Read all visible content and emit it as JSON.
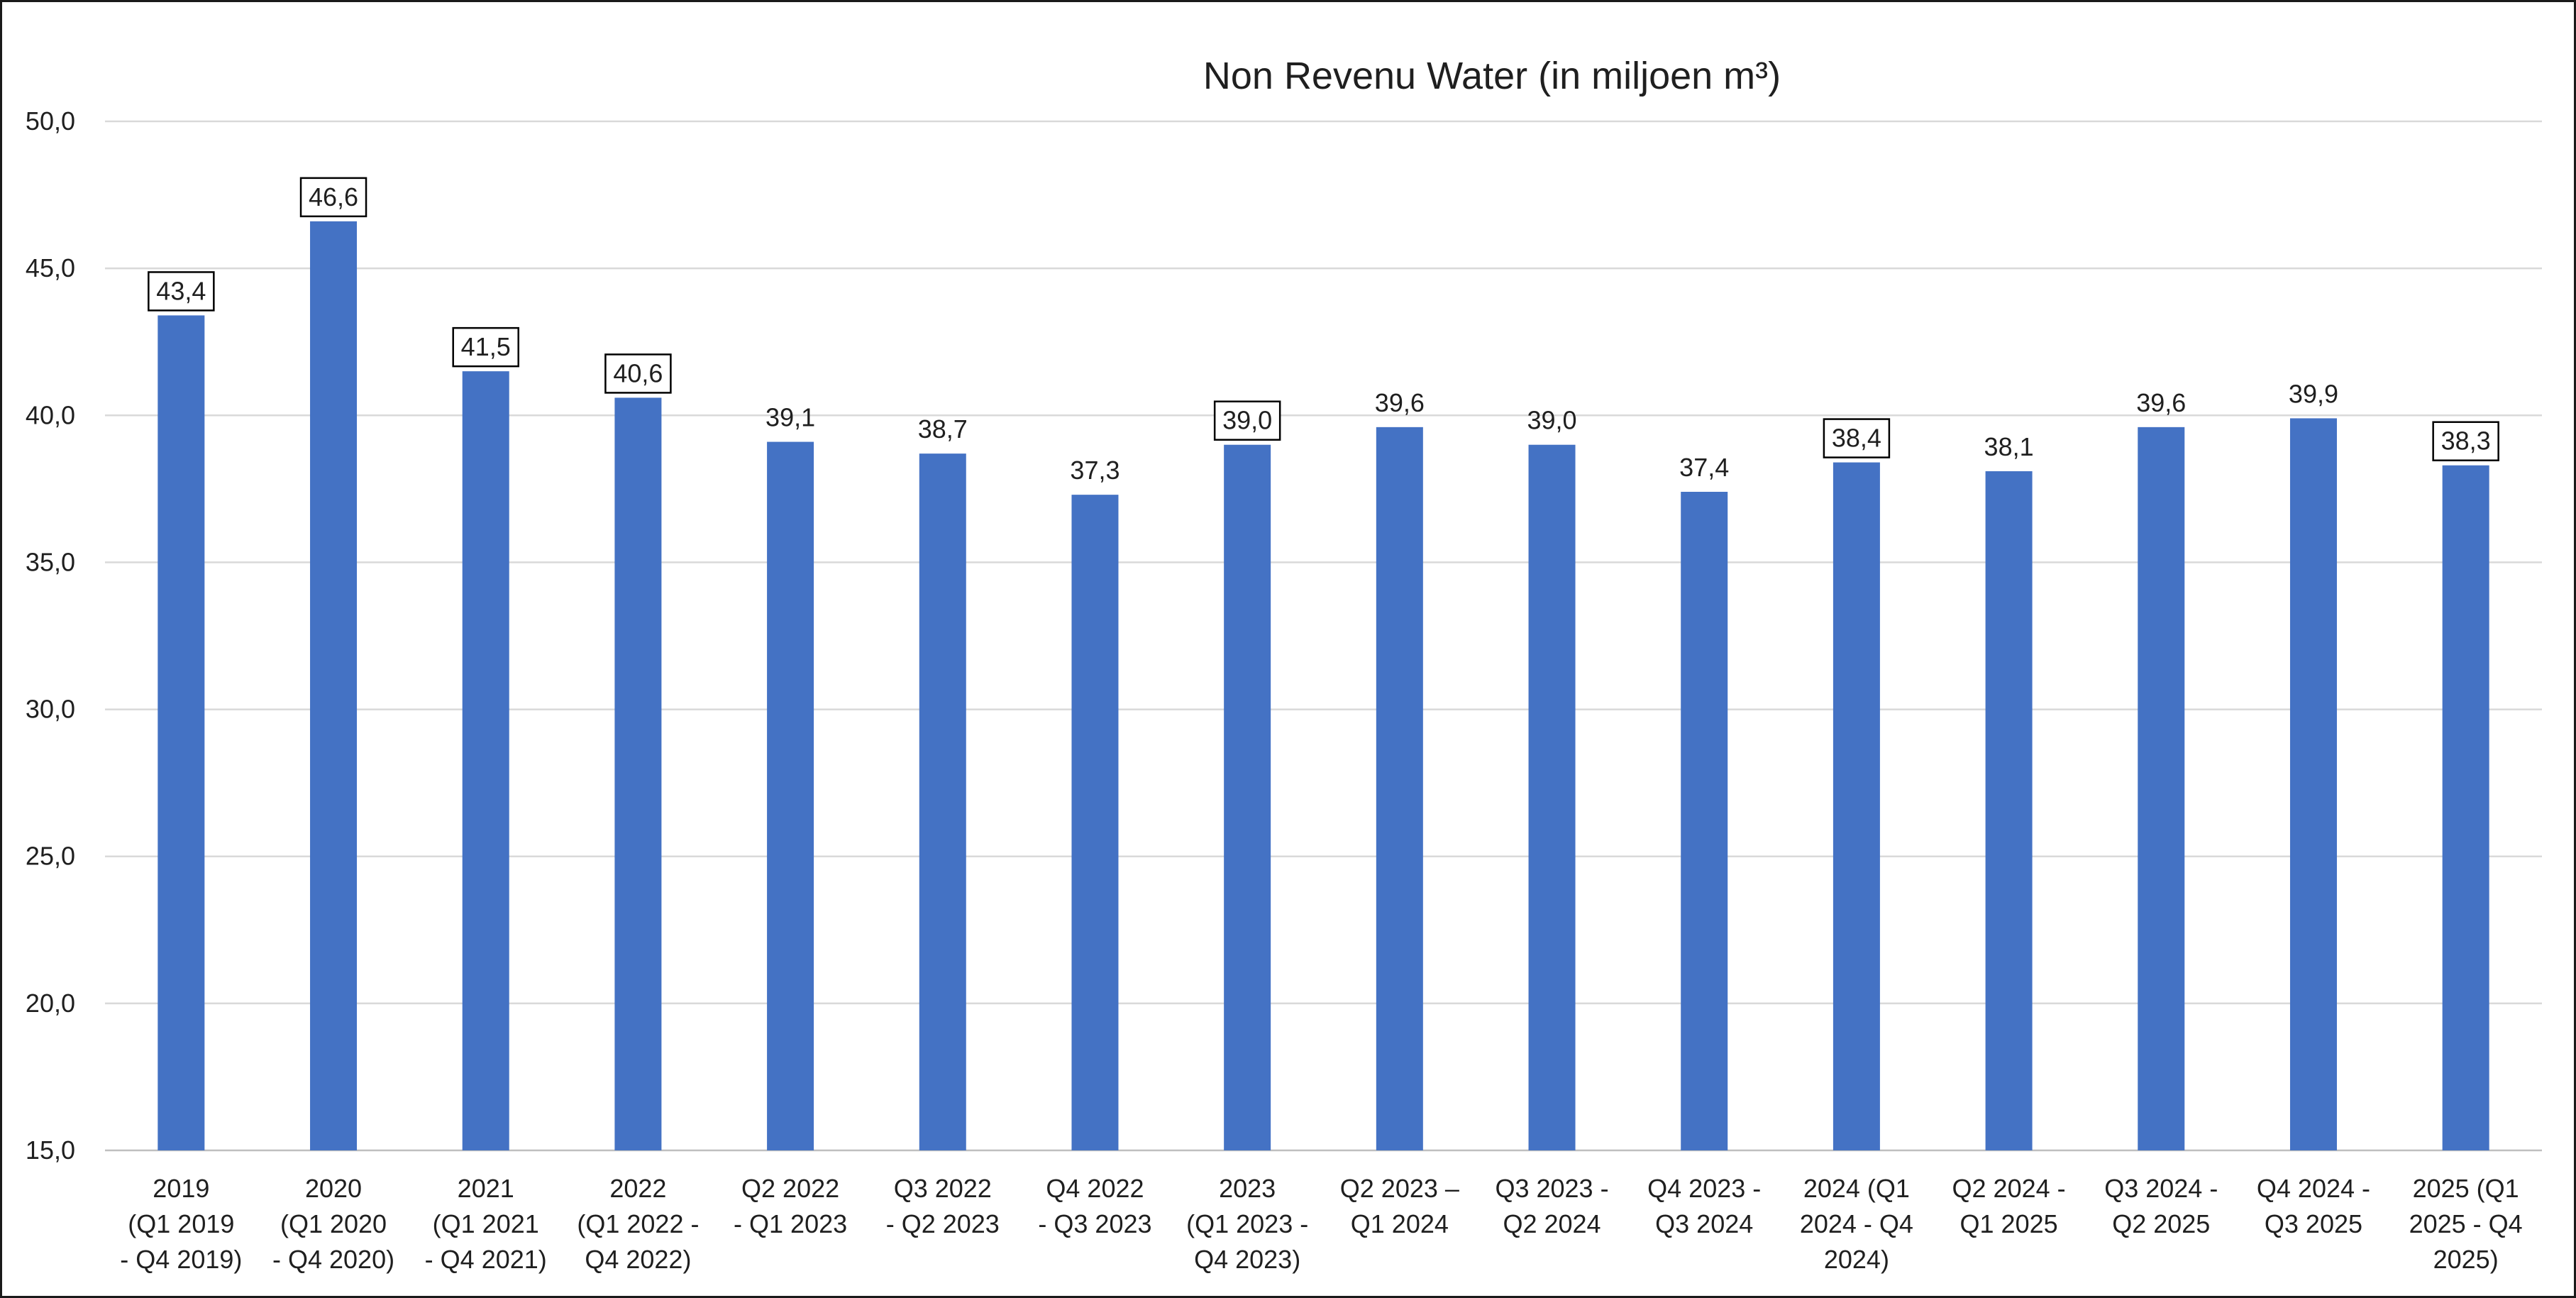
{
  "chart_data": {
    "type": "bar",
    "title": "Non Revenu Water (in miljoen m³)",
    "xlabel": "",
    "ylabel": "",
    "ylim": [
      15,
      50
    ],
    "yticks": [
      "15,0",
      "20,0",
      "25,0",
      "30,0",
      "35,0",
      "40,0",
      "45,0",
      "50,0"
    ],
    "grid": true,
    "legend": "none",
    "bar_color": "#4472c4",
    "categories": [
      [
        "2019",
        "(Q1 2019",
        "- Q4 2019)"
      ],
      [
        "2020",
        "(Q1 2020",
        "- Q4 2020)"
      ],
      [
        "2021",
        "(Q1 2021",
        "- Q4 2021)"
      ],
      [
        "2022",
        "(Q1 2022 -",
        "Q4 2022)"
      ],
      [
        "Q2 2022",
        "- Q1 2023"
      ],
      [
        "Q3 2022",
        "- Q2 2023"
      ],
      [
        "Q4 2022",
        "- Q3 2023"
      ],
      [
        "2023",
        "(Q1 2023 -",
        "Q4 2023)"
      ],
      [
        "Q2 2023 –",
        "Q1 2024"
      ],
      [
        "Q3 2023 -",
        "Q2 2024"
      ],
      [
        "Q4 2023 -",
        "Q3 2024"
      ],
      [
        "2024 (Q1",
        "2024 - Q4",
        "2024)"
      ],
      [
        "Q2 2024 -",
        "Q1 2025"
      ],
      [
        "Q3 2024 -",
        "Q2 2025"
      ],
      [
        "Q4 2024 -",
        "Q3 2025"
      ],
      [
        "2025 (Q1",
        "2025 - Q4",
        "2025)"
      ]
    ],
    "values": [
      43.4,
      46.6,
      41.5,
      40.6,
      39.1,
      38.7,
      37.3,
      39.0,
      39.6,
      39.0,
      37.4,
      38.4,
      38.1,
      39.6,
      39.9,
      38.3
    ],
    "value_labels": [
      "43,4",
      "46,6",
      "41,5",
      "40,6",
      "39,1",
      "38,7",
      "37,3",
      "39,0",
      "39,6",
      "39,0",
      "37,4",
      "38,4",
      "38,1",
      "39,6",
      "39,9",
      "38,3"
    ],
    "boxed_labels": [
      true,
      true,
      true,
      true,
      false,
      false,
      false,
      true,
      false,
      false,
      false,
      true,
      false,
      false,
      false,
      true
    ]
  }
}
